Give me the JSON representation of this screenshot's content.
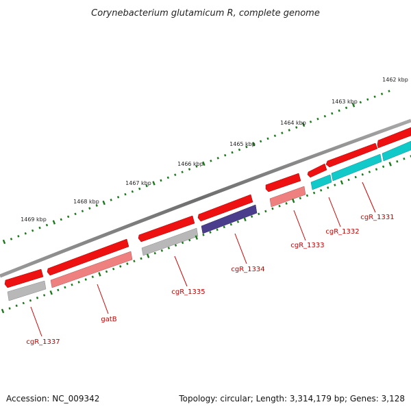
{
  "title": "Corynebacterium glutamicum R, complete genome",
  "footer": {
    "accession": "Accession: NC_009342",
    "summary": "Topology: circular; Length: 3,314,179 bp; Genes: 3,128"
  },
  "kbp_labels": [
    "1462 kbp",
    "1463 kbp",
    "1464 kbp",
    "1465 kbp",
    "1466 kbp",
    "1467 kbp",
    "1468 kbp",
    "1469 kbp"
  ],
  "colors": {
    "backbone": "#7f7f7f",
    "tick": "#1a7a1a",
    "label": "#c00000",
    "forward_gene": "#ee1111",
    "light_red": "#ee8080",
    "grey": "#b8b8b8",
    "navy": "#4a3d8c",
    "cyan": "#11c9c9"
  },
  "genes": [
    {
      "label": "cgR_1331",
      "color": "cyan"
    },
    {
      "label": "cgR_1332",
      "color": "cyan"
    },
    {
      "label": "cgR_1333",
      "color": "light_red"
    },
    {
      "label": "cgR_1334",
      "color": "navy"
    },
    {
      "label": "cgR_1335",
      "color": "grey"
    },
    {
      "label": "gatB",
      "color": "light_red"
    },
    {
      "label": "cgR_1337",
      "color": "grey"
    }
  ]
}
